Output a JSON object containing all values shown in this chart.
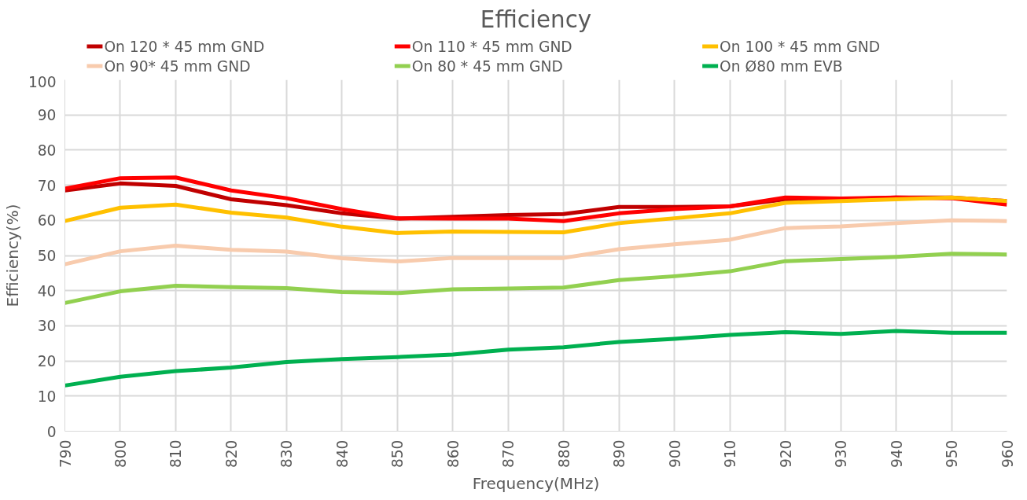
{
  "chart_data": {
    "type": "line",
    "title": "Efficiency",
    "xlabel": "Frequency(MHz)",
    "ylabel": "Efficiency(%)",
    "x": [
      790,
      800,
      810,
      820,
      830,
      840,
      850,
      860,
      870,
      880,
      890,
      900,
      910,
      920,
      930,
      940,
      950,
      960
    ],
    "series": [
      {
        "name": "On 120 * 45 mm GND",
        "color": "#c00000",
        "values": [
          68.5,
          70.5,
          69.8,
          66,
          64.3,
          62,
          60.5,
          61,
          61.5,
          61.8,
          63.8,
          63.8,
          64,
          66,
          66,
          66.5,
          66.5,
          65.5
        ]
      },
      {
        "name": "On 110 * 45 mm GND",
        "color": "#ff0000",
        "values": [
          69,
          72,
          72.2,
          68.5,
          66.3,
          63.2,
          60.6,
          60.5,
          60.5,
          59.8,
          62,
          63.2,
          64,
          66.5,
          66.2,
          66.5,
          66.3,
          64.5
        ]
      },
      {
        "name": "On 100 * 45 mm GND",
        "color": "#ffc000",
        "values": [
          59.8,
          63.6,
          64.5,
          62.2,
          60.8,
          58.2,
          56.4,
          56.8,
          56.7,
          56.6,
          59.2,
          60.6,
          62,
          65,
          65.5,
          66,
          66.5,
          65.5
        ]
      },
      {
        "name": "On 90* 45 mm GND",
        "color": "#f8cbad",
        "values": [
          47.5,
          51.2,
          52.8,
          51.6,
          51.1,
          49.2,
          48.3,
          49.3,
          49.3,
          49.3,
          51.8,
          53.2,
          54.5,
          57.8,
          58.3,
          59.2,
          60,
          59.8
        ]
      },
      {
        "name": "On 80 * 45 mm GND",
        "color": "#92d050",
        "values": [
          36.5,
          39.8,
          41.4,
          41,
          40.7,
          39.6,
          39.3,
          40.4,
          40.6,
          40.9,
          43,
          44.1,
          45.5,
          48.4,
          49,
          49.6,
          50.5,
          50.3
        ]
      },
      {
        "name": "On Ø80 mm EVB",
        "color": "#00b050",
        "values": [
          13,
          15.5,
          17.1,
          18.1,
          19.7,
          20.5,
          21.1,
          21.8,
          23.2,
          23.9,
          25.4,
          26.3,
          27.4,
          28.2,
          27.7,
          28.5,
          28,
          28
        ]
      }
    ],
    "xlim": [
      790,
      960
    ],
    "xticks": [
      790,
      800,
      810,
      820,
      830,
      840,
      850,
      860,
      870,
      880,
      890,
      900,
      910,
      920,
      930,
      940,
      950,
      960
    ],
    "ylim": [
      0,
      100
    ],
    "yticks": [
      0,
      10,
      20,
      30,
      40,
      50,
      60,
      70,
      80,
      90,
      100
    ],
    "grid": true,
    "legend": "top",
    "marker": "none",
    "line_style": "solid"
  }
}
